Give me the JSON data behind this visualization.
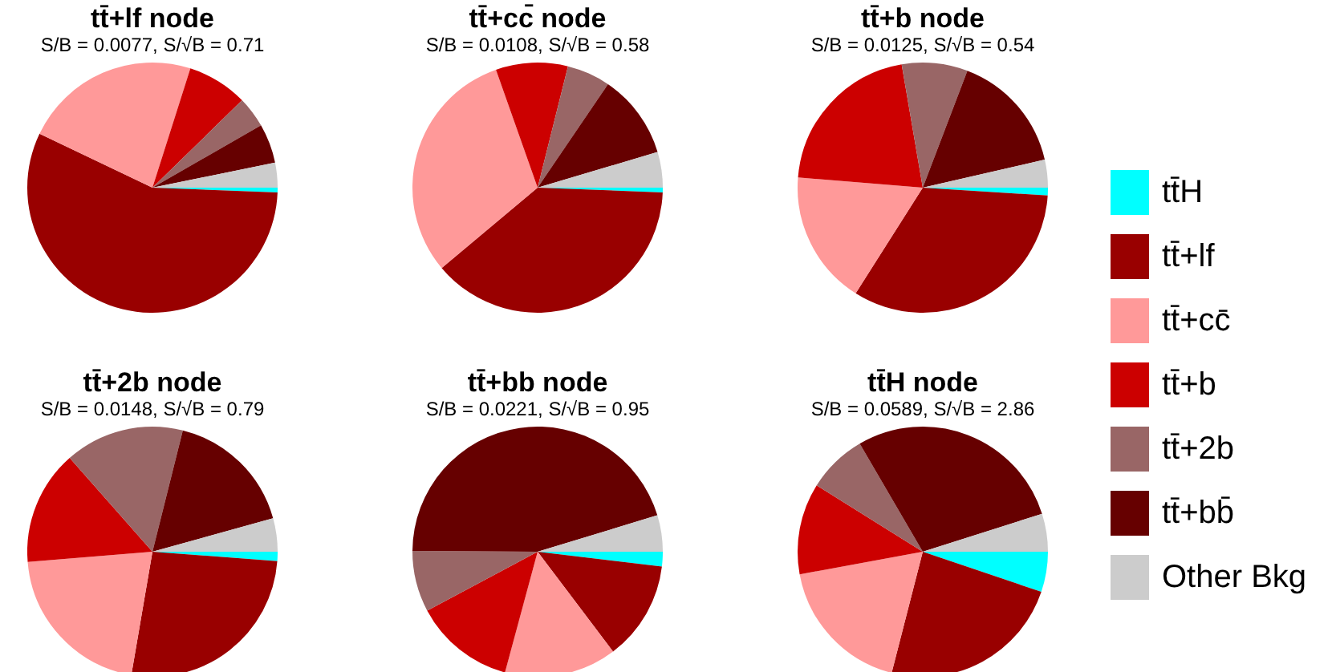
{
  "chart_data": [
    {
      "type": "pie",
      "title": "tt̄+lf node",
      "subtitle": "S/B = 0.0077, S/√B = 0.71",
      "categories": [
        "tt̄H",
        "tt̄+lf",
        "tt̄+cc̄",
        "tt̄+b",
        "tt̄+2b",
        "tt̄+bb̄",
        "Other Bkg"
      ],
      "values": [
        0.6,
        56.5,
        22.8,
        7.8,
        4,
        5.1,
        3.2
      ],
      "colors": [
        "#00ffff",
        "#990000",
        "#ff9999",
        "#cc0000",
        "#996666",
        "#660000",
        "#cccccc"
      ],
      "legend": "right"
    },
    {
      "type": "pie",
      "title": "tt̄+cc̄ node",
      "subtitle": "S/B = 0.0108, S/√B = 0.58",
      "categories": [
        null,
        null,
        null,
        null,
        null,
        null,
        null
      ],
      "values": [
        0.6,
        38.3,
        30.7,
        9.3,
        5.6,
        10.9,
        4.6
      ],
      "colors": [
        "#00ffff",
        "#990000",
        "#ff9999",
        "#cc0000",
        "#996666",
        "#660000",
        "#cccccc"
      ]
    },
    {
      "type": "pie",
      "title": "tt̄+b node",
      "subtitle": "S/B = 0.0125, S/√B = 0.54",
      "categories": [
        null,
        null,
        null,
        null,
        null,
        null,
        null
      ],
      "values": [
        1,
        33,
        17.3,
        21,
        8.5,
        15.6,
        3.6
      ],
      "colors": [
        "#00ffff",
        "#990000",
        "#ff9999",
        "#cc0000",
        "#996666",
        "#660000",
        "#cccccc"
      ]
    },
    {
      "type": "pie",
      "title": "tt̄+2b node",
      "subtitle": "S/B = 0.0148, S/√B = 0.79",
      "categories": [
        null,
        null,
        null,
        null,
        null,
        null,
        null
      ],
      "values": [
        1.2,
        26.5,
        21,
        14.8,
        15.4,
        16.8,
        4.3
      ],
      "colors": [
        "#00ffff",
        "#990000",
        "#ff9999",
        "#cc0000",
        "#996666",
        "#660000",
        "#cccccc"
      ]
    },
    {
      "type": "pie",
      "title": "tt̄+bb node",
      "subtitle": "S/B = 0.0221, S/√B = 0.95",
      "categories": [
        null,
        null,
        null,
        null,
        null,
        null,
        null
      ],
      "values": [
        1.9,
        12.8,
        14.5,
        13,
        7.9,
        45.2,
        4.7
      ],
      "colors": [
        "#00ffff",
        "#990000",
        "#ff9999",
        "#cc0000",
        "#996666",
        "#660000",
        "#cccccc"
      ]
    },
    {
      "type": "pie",
      "title": "tt̄H node",
      "subtitle": "S/B = 0.0589, S/√B = 2.86",
      "categories": [
        null,
        null,
        null,
        null,
        null,
        null,
        null
      ],
      "values": [
        5.2,
        23.8,
        18.1,
        11.8,
        7.7,
        28.5,
        4.9
      ],
      "colors": [
        "#00ffff",
        "#990000",
        "#ff9999",
        "#cc0000",
        "#996666",
        "#660000",
        "#cccccc"
      ]
    }
  ]
}
